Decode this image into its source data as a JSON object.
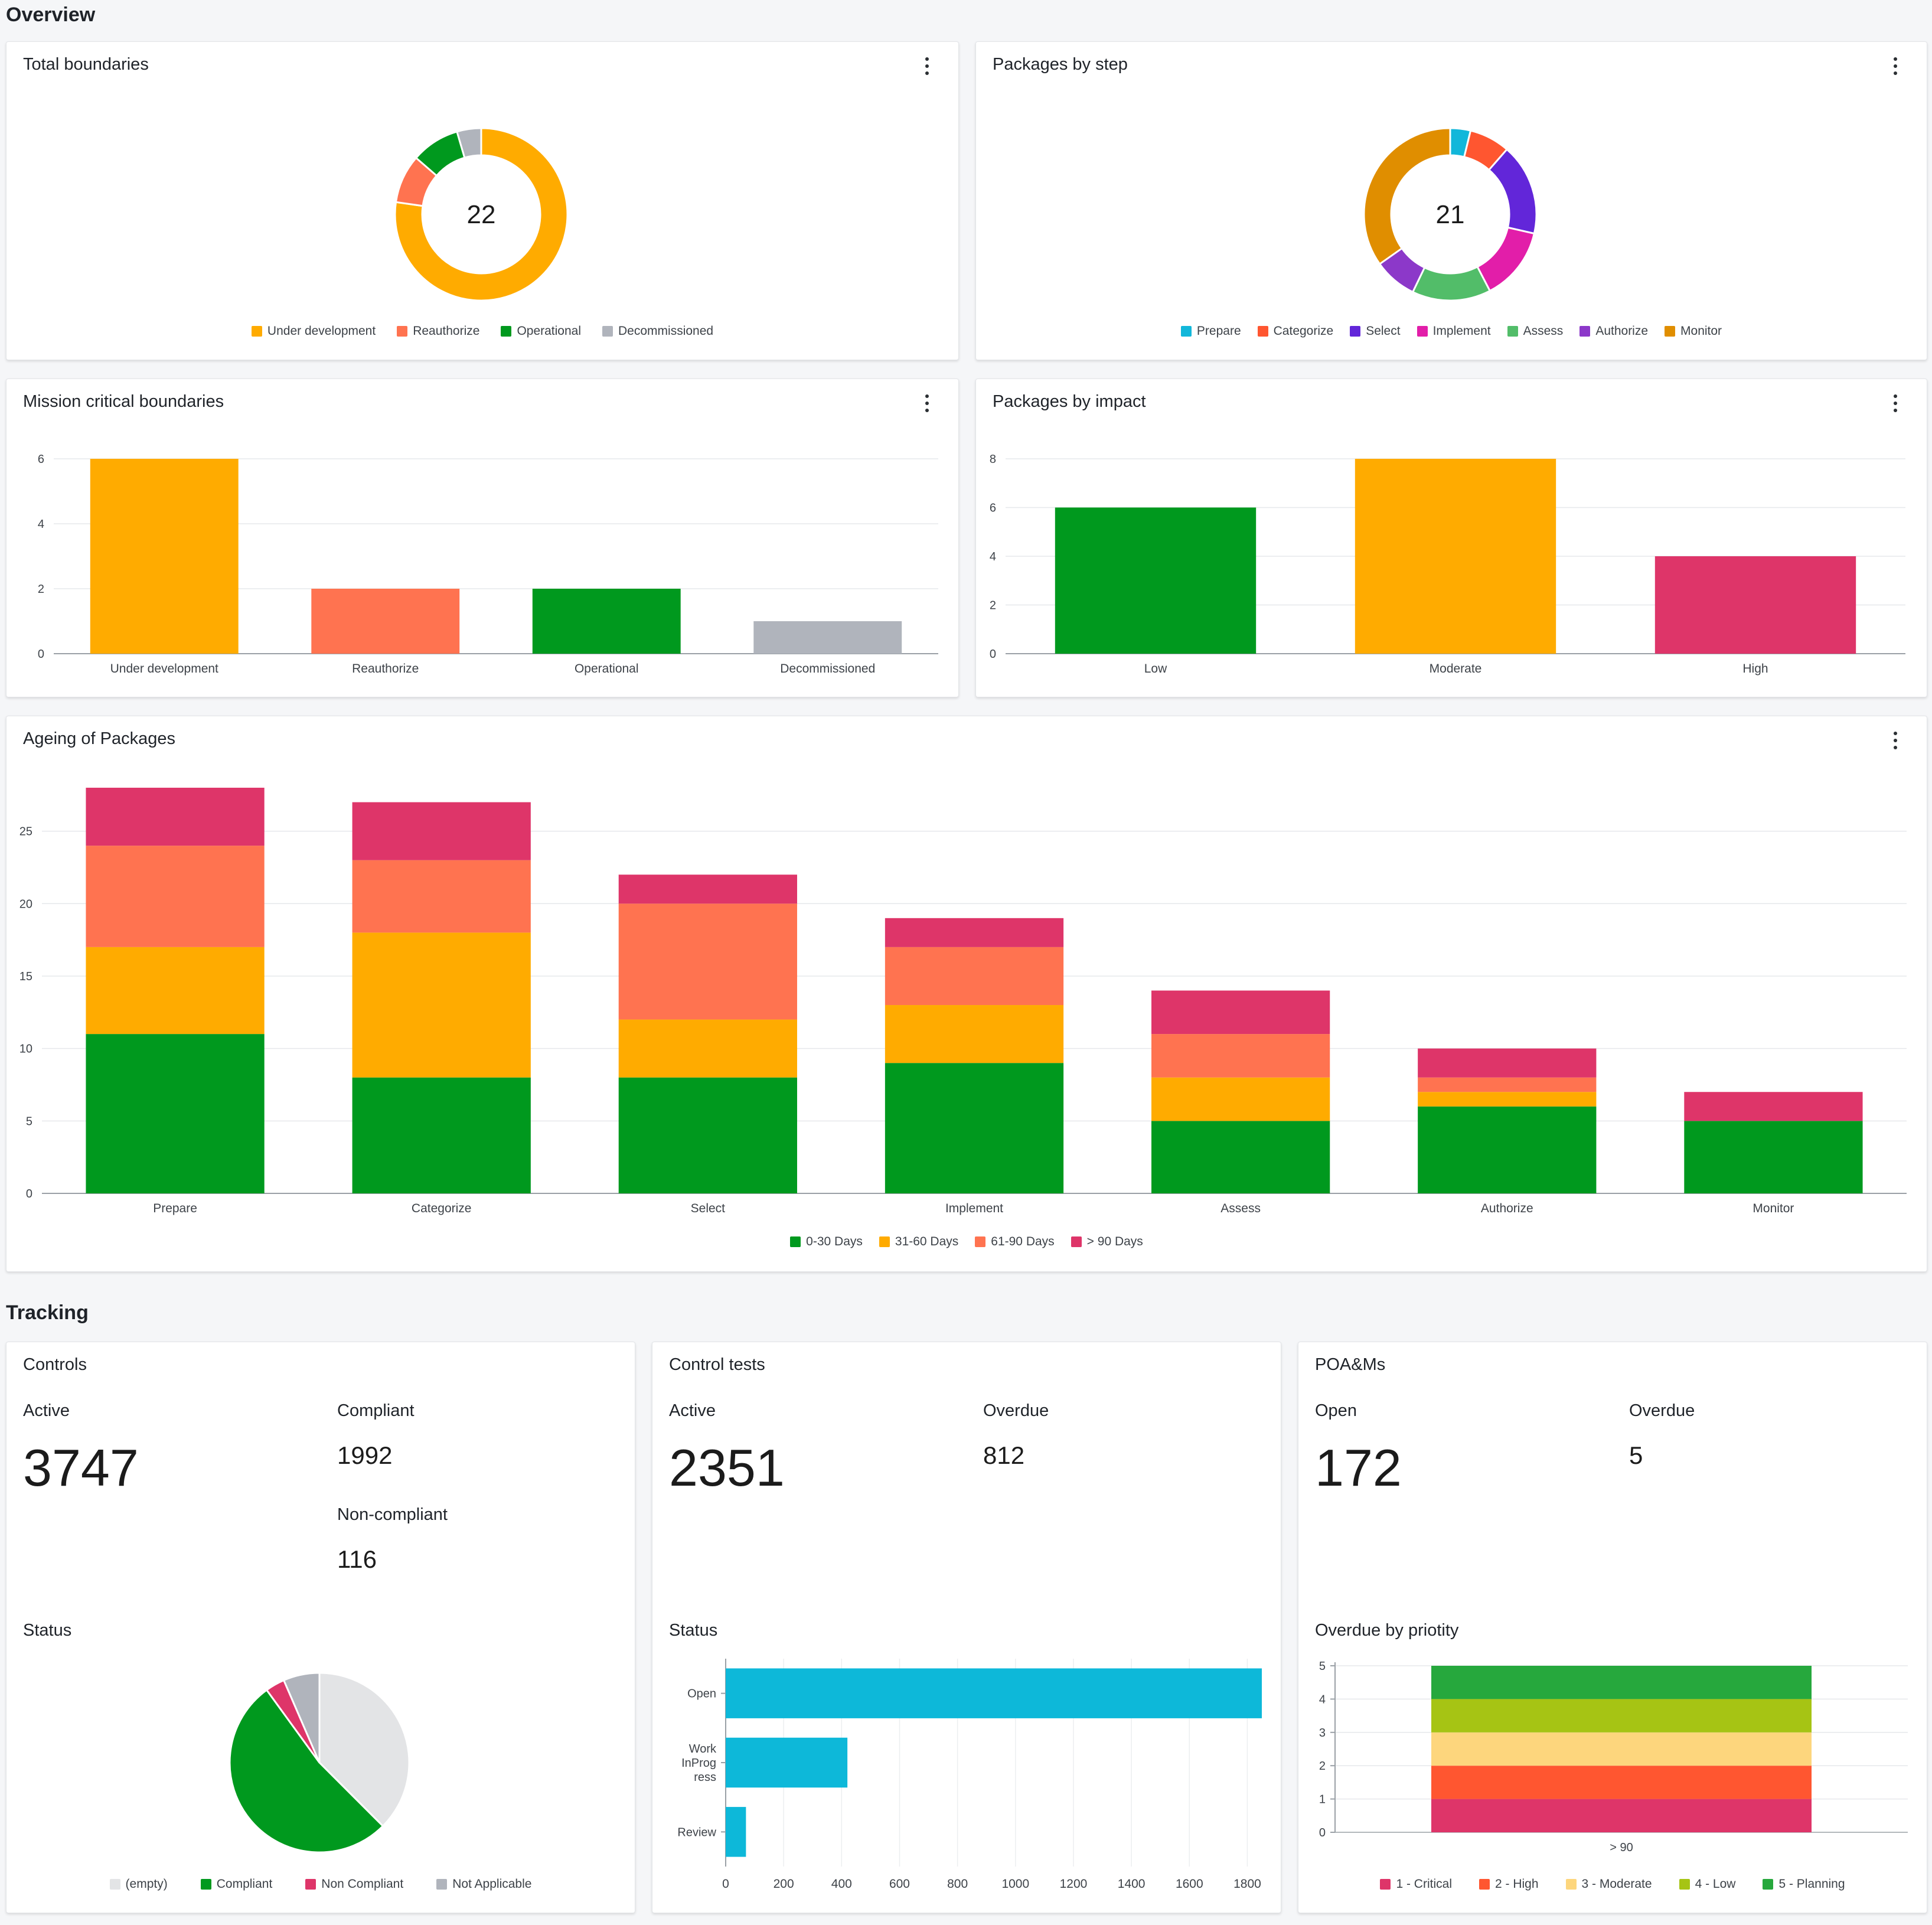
{
  "sections": {
    "overview": "Overview",
    "tracking": "Tracking"
  },
  "colors": {
    "under_development": "#ffab00",
    "reauthorize": "#ff7350",
    "operational": "#00991e",
    "decommissioned": "#b0b4bc",
    "prepare": "#12b7da",
    "categorize": "#ff5630",
    "select": "#6226d9",
    "implement": "#e21ea9",
    "assess": "#52bd69",
    "authorize": "#8c38c9",
    "monitor": "#e08e00",
    "high": "#de3569",
    "d30": "#00991e",
    "d60": "#ffab00",
    "d90": "#ff7350",
    "d90plus": "#de3569",
    "empty": "#e3e4e6",
    "compliant": "#00991e",
    "non_compliant": "#de3569",
    "not_applicable": "#b0b4bc",
    "tests": "#0db8d9",
    "critical": "#de3569",
    "p_high": "#ff5630",
    "p_moderate": "#fdd67d",
    "p_low": "#a6c414",
    "planning": "#26a83d"
  },
  "cards": {
    "total_boundaries": {
      "title": "Total boundaries",
      "center": "22",
      "legend": [
        "Under development",
        "Reauthorize",
        "Operational",
        "Decommissioned"
      ]
    },
    "packages_by_step": {
      "title": "Packages by step",
      "center": "21",
      "legend": [
        "Prepare",
        "Categorize",
        "Select",
        "Implement",
        "Assess",
        "Authorize",
        "Monitor"
      ]
    },
    "mission_critical": {
      "title": "Mission critical boundaries"
    },
    "packages_by_impact": {
      "title": "Packages by impact"
    },
    "ageing": {
      "title": "Ageing of Packages",
      "legend": [
        "0-30 Days",
        "31-60 Days",
        "61-90 Days",
        "> 90 Days"
      ]
    },
    "controls": {
      "title": "Controls",
      "active_label": "Active",
      "active_value": "3747",
      "compliant_label": "Compliant",
      "compliant_value": "1992",
      "noncompliant_label": "Non-compliant",
      "noncompliant_value": "116",
      "status_label": "Status",
      "legend": [
        "(empty)",
        "Compliant",
        "Non Compliant",
        "Not Applicable"
      ]
    },
    "control_tests": {
      "title": "Control tests",
      "active_label": "Active",
      "active_value": "2351",
      "overdue_label": "Overdue",
      "overdue_value": "812",
      "status_label": "Status"
    },
    "poams": {
      "title": "POA&Ms",
      "open_label": "Open",
      "open_value": "172",
      "overdue_label": "Overdue",
      "overdue_value": "5",
      "priority_label": "Overdue by priotity",
      "legend": [
        "1 - Critical",
        "2 - High",
        "3 - Moderate",
        "4 - Low",
        "5 - Planning"
      ]
    }
  },
  "chart_data": [
    {
      "id": "total_boundaries",
      "type": "pie",
      "donut": true,
      "labels": [
        "Under development",
        "Reauthorize",
        "Operational",
        "Decommissioned"
      ],
      "values": [
        17,
        2,
        2,
        1
      ]
    },
    {
      "id": "packages_by_step",
      "type": "pie",
      "donut": true,
      "labels": [
        "Prepare",
        "Categorize",
        "Select",
        "Implement",
        "Assess",
        "Authorize",
        "Monitor"
      ],
      "values": [
        0.8,
        1.6,
        3.6,
        2.9,
        3.1,
        1.7,
        7.3
      ]
    },
    {
      "id": "mission_critical",
      "type": "bar",
      "categories": [
        "Under development",
        "Reauthorize",
        "Operational",
        "Decommissioned"
      ],
      "values": [
        6,
        2,
        2,
        1
      ],
      "ylim": [
        0,
        6
      ],
      "yticks": [
        0,
        2,
        4,
        6
      ],
      "grid": true
    },
    {
      "id": "packages_by_impact",
      "type": "bar",
      "categories": [
        "Low",
        "Moderate",
        "High"
      ],
      "values": [
        6,
        8,
        4
      ],
      "ylim": [
        0,
        8
      ],
      "yticks": [
        0,
        2,
        4,
        6,
        8
      ],
      "grid": true
    },
    {
      "id": "ageing",
      "type": "bar",
      "stacked": true,
      "categories": [
        "Prepare",
        "Categorize",
        "Select",
        "Implement",
        "Assess",
        "Authorize",
        "Monitor"
      ],
      "series": [
        {
          "name": "0-30 Days",
          "values": [
            11,
            8,
            8,
            9,
            5,
            6,
            5
          ]
        },
        {
          "name": "31-60 Days",
          "values": [
            6,
            10,
            4,
            4,
            3,
            1,
            0
          ]
        },
        {
          "name": "61-90 Days",
          "values": [
            7,
            5,
            8,
            4,
            3,
            1,
            0
          ]
        },
        {
          "name": "> 90 Days",
          "values": [
            4,
            4,
            2,
            2,
            3,
            2,
            2
          ]
        }
      ],
      "ylim": [
        0,
        28
      ],
      "yticks": [
        0,
        5,
        10,
        15,
        20,
        25
      ],
      "grid": true,
      "legend": "bottom"
    },
    {
      "id": "controls_status",
      "type": "pie",
      "labels": [
        "(empty)",
        "Compliant",
        "Non Compliant",
        "Not Applicable"
      ],
      "values": [
        37.5,
        52.5,
        3.5,
        6.5
      ]
    },
    {
      "id": "control_tests_status",
      "type": "bar",
      "horizontal": true,
      "categories": [
        "Open",
        "Work InProg ress",
        "Review"
      ],
      "category_lines": [
        [
          "Open"
        ],
        [
          "Work",
          "InProg",
          "ress"
        ],
        [
          "Review"
        ]
      ],
      "values": [
        1850,
        420,
        70
      ],
      "xlim": [
        0,
        1850
      ],
      "xticks": [
        0,
        200,
        400,
        600,
        800,
        1000,
        1200,
        1400,
        1600,
        1800
      ],
      "grid": true
    },
    {
      "id": "poam_priority",
      "type": "bar",
      "stacked": true,
      "categories": [
        "> 90"
      ],
      "series": [
        {
          "name": "1 - Critical",
          "values": [
            1
          ]
        },
        {
          "name": "2 - High",
          "values": [
            1
          ]
        },
        {
          "name": "3 - Moderate",
          "values": [
            1
          ]
        },
        {
          "name": "4 - Low",
          "values": [
            1
          ]
        },
        {
          "name": "5 - Planning",
          "values": [
            1
          ]
        }
      ],
      "ylim": [
        0,
        5
      ],
      "yticks": [
        0,
        1,
        2,
        3,
        4,
        5
      ],
      "grid": true,
      "legend": "bottom"
    }
  ]
}
